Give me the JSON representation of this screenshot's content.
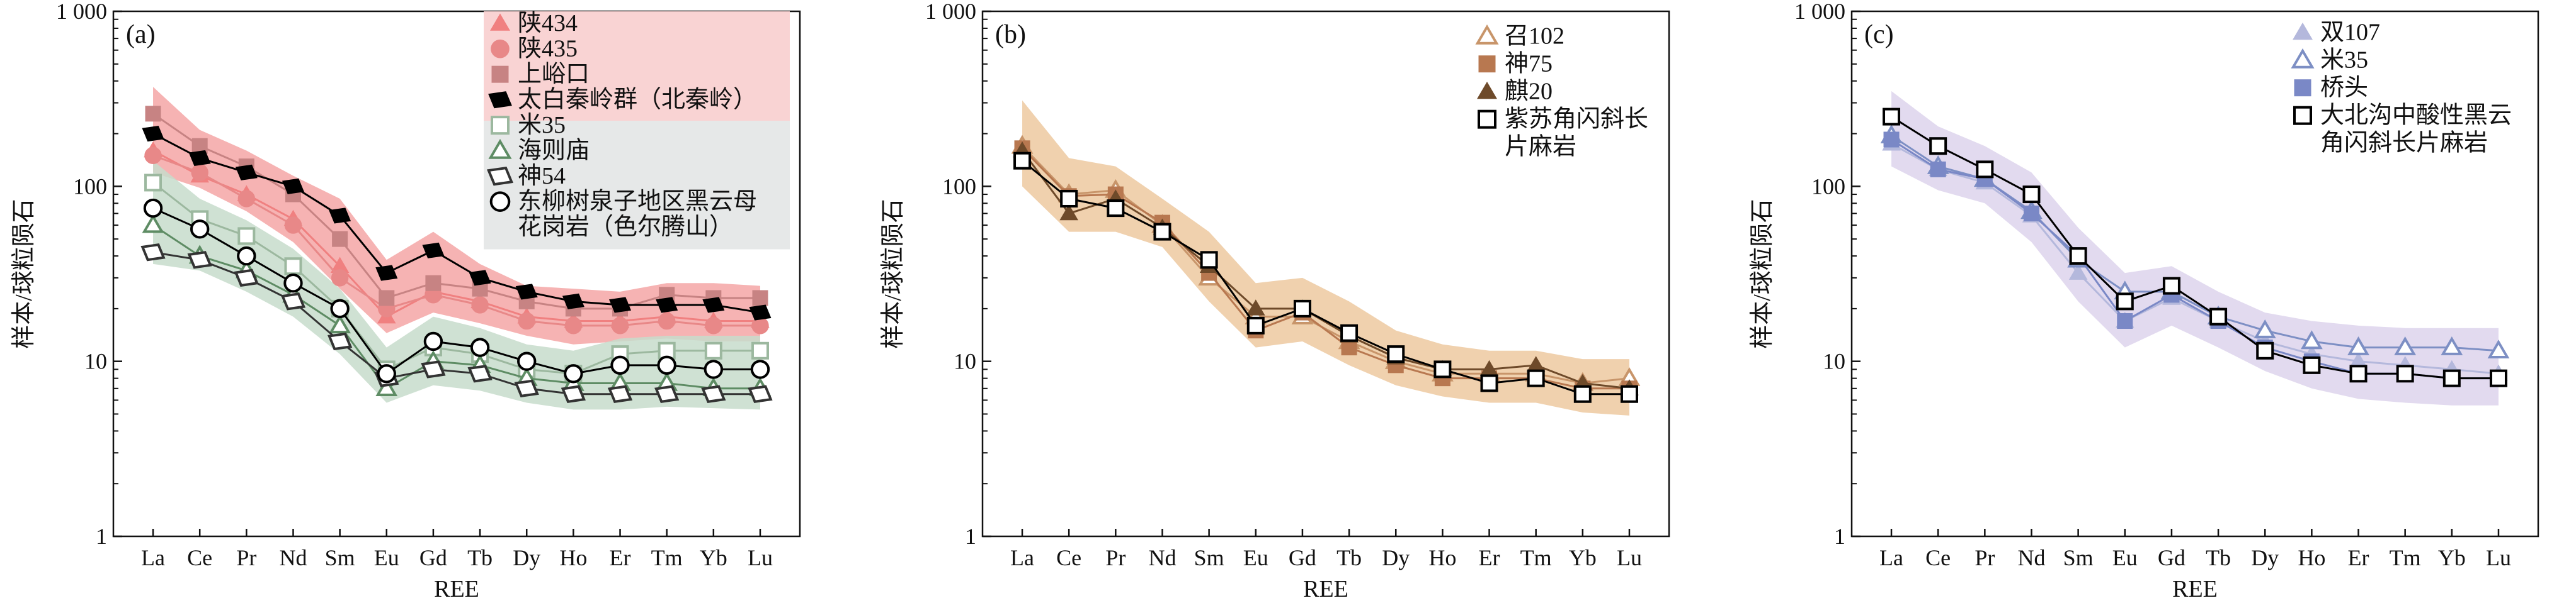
{
  "chart_data": [
    {
      "type": "line",
      "panel_label": "(a)",
      "y_scale": "log",
      "ylim": [
        1,
        1000
      ],
      "yticks": [
        "1",
        "10",
        "100",
        "1 000"
      ],
      "xlabel": "REE",
      "ylabel": "样本/球粒陨石",
      "categories": [
        "La",
        "Ce",
        "Pr",
        "Nd",
        "Sm",
        "Eu",
        "Gd",
        "Tb",
        "Dy",
        "Ho",
        "Er",
        "Tm",
        "Yb",
        "Lu"
      ],
      "legend_position": "top-right",
      "grid": false,
      "bands": [
        {
          "color": "#f4a6a6",
          "lower": [
            120,
            98,
            72,
            48,
            26,
            14.5,
            19,
            16.5,
            14,
            12.5,
            13,
            13.5,
            13,
            13
          ],
          "upper": [
            370,
            210,
            160,
            115,
            85,
            38,
            55,
            36,
            27,
            26,
            25,
            28,
            28,
            27
          ]
        },
        {
          "color": "#c7dccb",
          "lower": [
            36,
            33,
            25,
            18,
            11,
            5.8,
            7.3,
            6.8,
            5.8,
            5.3,
            5.3,
            5.5,
            5.4,
            5.3
          ],
          "upper": [
            140,
            85,
            64,
            44,
            26,
            12,
            18,
            15.5,
            12.5,
            11.5,
            13.5,
            14,
            14,
            14
          ]
        }
      ],
      "series": [
        {
          "name": "陕434",
          "marker": "triangle",
          "color": "#f08080",
          "values": [
            160,
            115,
            90,
            65,
            35,
            18,
            25,
            22,
            18,
            17,
            17,
            18,
            17,
            17
          ]
        },
        {
          "name": "陕435",
          "marker": "circle",
          "color": "#e88888",
          "values": [
            150,
            120,
            85,
            60,
            30,
            20,
            24,
            21,
            17,
            16,
            16,
            17,
            16,
            16
          ]
        },
        {
          "name": "上峪口",
          "marker": "square",
          "color": "#c78383",
          "values": [
            260,
            170,
            130,
            90,
            50,
            23,
            28,
            26,
            22,
            20,
            20,
            24,
            23,
            23
          ]
        },
        {
          "name": "太白秦岭群（北秦岭）",
          "marker": "diamond",
          "color": "#000000",
          "values": [
            200,
            145,
            120,
            100,
            68,
            32,
            43,
            30,
            25,
            22,
            21,
            21,
            21,
            19
          ]
        },
        {
          "name": "米35",
          "marker": "square-open",
          "color": "#9cb89f",
          "values": [
            105,
            65,
            52,
            35,
            20,
            9,
            12,
            11,
            9,
            8.5,
            11,
            11.5,
            11.5,
            11.5
          ]
        },
        {
          "name": "海则庙",
          "marker": "triangle-open",
          "color": "#5e8c64",
          "values": [
            60,
            40,
            33,
            24,
            16,
            7,
            10,
            9.5,
            8,
            7.5,
            7.5,
            7.5,
            7,
            7
          ]
        },
        {
          "name": "神54",
          "marker": "diamond-open",
          "color": "#333333",
          "values": [
            42,
            38,
            30,
            22,
            13,
            8,
            9,
            8.5,
            7,
            6.5,
            6.5,
            6.5,
            6.5,
            6.5
          ]
        },
        {
          "name": "东柳树泉子地区黑云母花岗岩（色尔腾山）",
          "marker": "circle-open",
          "color": "#000000",
          "values": [
            75,
            57,
            40,
            28,
            20,
            8.5,
            13,
            12,
            10,
            8.5,
            9.5,
            9.5,
            9,
            9
          ]
        }
      ],
      "legend_lines": [
        "陕434",
        "陕435",
        "上峪口",
        "太白秦岭群（北秦岭）",
        "米35",
        "海则庙",
        "神54",
        "东柳树泉子地区黑云母",
        "花岗岩（色尔腾山）"
      ]
    },
    {
      "type": "line",
      "panel_label": "(b)",
      "y_scale": "log",
      "ylim": [
        1,
        1000
      ],
      "yticks": [
        "1",
        "10",
        "100",
        "1 000"
      ],
      "xlabel": "REE",
      "ylabel": "样本/球粒陨石",
      "categories": [
        "La",
        "Ce",
        "Pr",
        "Nd",
        "Sm",
        "Eu",
        "Gd",
        "Tb",
        "Dy",
        "Ho",
        "Er",
        "Tm",
        "Yb",
        "Lu"
      ],
      "legend_position": "top-right",
      "grid": false,
      "bands": [
        {
          "color": "#edc9a0",
          "lower": [
            100,
            55,
            55,
            45,
            22,
            12,
            13,
            9.5,
            7.3,
            6.3,
            5.8,
            5.8,
            5.1,
            4.9
          ],
          "upper": [
            310,
            145,
            130,
            85,
            55,
            28,
            30,
            22,
            15,
            12.5,
            11.5,
            11.5,
            10.3,
            10.3
          ]
        }
      ],
      "series": [
        {
          "name": "召102",
          "marker": "triangle-open",
          "color": "#c8956a",
          "values": [
            170,
            90,
            95,
            60,
            30,
            18,
            18,
            13,
            10,
            8.5,
            8.5,
            8.5,
            7.5,
            8
          ]
        },
        {
          "name": "神75",
          "marker": "square",
          "color": "#b87850",
          "values": [
            165,
            88,
            90,
            62,
            32,
            15,
            19,
            12,
            9.5,
            8,
            8,
            8,
            7,
            7
          ]
        },
        {
          "name": "麒20",
          "marker": "triangle",
          "color": "#6e4a2a",
          "values": [
            160,
            70,
            85,
            58,
            35,
            20,
            20,
            14,
            10.5,
            9,
            9,
            9.5,
            7.5,
            7
          ]
        },
        {
          "name": "紫苏角闪斜长片麻岩",
          "marker": "square-open",
          "color": "#000000",
          "values": [
            140,
            85,
            75,
            55,
            38,
            16,
            20,
            14.5,
            11,
            9,
            7.5,
            8,
            6.5,
            6.5
          ]
        }
      ],
      "legend_lines": [
        "召102",
        "神75",
        "麒20",
        "紫苏角闪斜长",
        "片麻岩"
      ]
    },
    {
      "type": "line",
      "panel_label": "(c)",
      "y_scale": "log",
      "ylim": [
        1,
        1000
      ],
      "yticks": [
        "1",
        "10",
        "100",
        "1 000"
      ],
      "xlabel": "REE",
      "ylabel": "样本/球粒陨石",
      "categories": [
        "La",
        "Ce",
        "Pr",
        "Nd",
        "Sm",
        "Eu",
        "Gd",
        "Tb",
        "Dy",
        "Ho",
        "Er",
        "Tm",
        "Yb",
        "Lu"
      ],
      "legend_position": "top-right",
      "grid": false,
      "bands": [
        {
          "color": "#ddd4ec",
          "lower": [
            130,
            95,
            80,
            48,
            22,
            12,
            16,
            12,
            8.8,
            7,
            6.1,
            5.8,
            5.6,
            5.6
          ],
          "upper": [
            350,
            220,
            170,
            120,
            58,
            32,
            35,
            25,
            19,
            17,
            16,
            15.5,
            15.5,
            15.5
          ]
        }
      ],
      "series": [
        {
          "name": "双107",
          "marker": "triangle",
          "color": "#b4b8dc",
          "values": [
            175,
            125,
            105,
            68,
            32,
            17,
            23,
            17,
            13,
            11,
            10,
            9.5,
            9,
            8.5
          ]
        },
        {
          "name": "米35",
          "marker": "triangle-open",
          "color": "#7d8fc4",
          "values": [
            195,
            130,
            110,
            72,
            38,
            25,
            25,
            18,
            15,
            13,
            12,
            12,
            12,
            11.5
          ]
        },
        {
          "name": "桥头",
          "marker": "square",
          "color": "#7a88c6",
          "values": [
            185,
            125,
            110,
            70,
            40,
            17,
            24,
            17,
            12,
            10,
            8.5,
            8.5,
            8,
            8
          ]
        },
        {
          "name": "大北沟中酸性黑云角闪斜长片麻岩",
          "marker": "square-open",
          "color": "#000000",
          "values": [
            250,
            170,
            125,
            90,
            40,
            22,
            27,
            18,
            11.5,
            9.5,
            8.5,
            8.5,
            8,
            8
          ]
        }
      ],
      "legend_lines": [
        "双107",
        "米35",
        "桥头",
        "大北沟中酸性黑云",
        "角闪斜长片麻岩"
      ]
    }
  ]
}
